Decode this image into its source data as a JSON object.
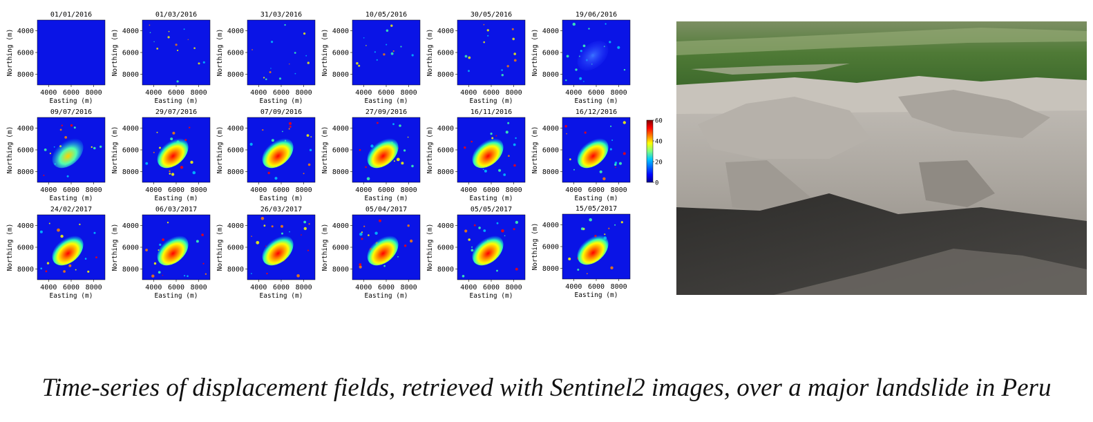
{
  "caption": "Time-series of displacement fields, retrieved with Sentinel2 images, over a major landslide in Peru",
  "photo": {
    "label": "landslide-photo",
    "colors": {
      "sky_field": "#5f8a3e",
      "fields_light": "#9bb07a",
      "rock": "#c9c5bf",
      "rock_dark": "#8e8a84",
      "shadow": "#3a3937"
    }
  },
  "chart_data": {
    "type": "heatmap",
    "xlabel": "Easting (m)",
    "ylabel": "Northing (m)",
    "x_ticks": [
      4000,
      6000,
      8000
    ],
    "y_ticks": [
      4000,
      6000,
      8000
    ],
    "xlim": [
      3000,
      9000
    ],
    "ylim": [
      9000,
      3000
    ],
    "colorbar": {
      "ticks": [
        0,
        20,
        40,
        60
      ],
      "range": [
        0,
        60
      ],
      "colormap": [
        "#00008f",
        "#0000ff",
        "#00c8ff",
        "#7fff7f",
        "#ffff00",
        "#ff7f00",
        "#ff0000",
        "#800000"
      ]
    },
    "panels": [
      {
        "date": "01/01/2016",
        "peak": 0
      },
      {
        "date": "01/03/2016",
        "peak": 0
      },
      {
        "date": "31/03/2016",
        "peak": 0
      },
      {
        "date": "10/05/2016",
        "peak": 0
      },
      {
        "date": "30/05/2016",
        "peak": 0
      },
      {
        "date": "19/06/2016",
        "peak": 8
      },
      {
        "date": "09/07/2016",
        "peak": 35
      },
      {
        "date": "29/07/2016",
        "peak": 50
      },
      {
        "date": "07/09/2016",
        "peak": 55
      },
      {
        "date": "27/09/2016",
        "peak": 55
      },
      {
        "date": "16/11/2016",
        "peak": 55
      },
      {
        "date": "16/12/2016",
        "peak": 55
      },
      {
        "date": "24/02/2017",
        "peak": 58
      },
      {
        "date": "06/03/2017",
        "peak": 58
      },
      {
        "date": "26/03/2017",
        "peak": 58
      },
      {
        "date": "05/04/2017",
        "peak": 58
      },
      {
        "date": "05/05/2017",
        "peak": 58
      },
      {
        "date": "15/05/2017",
        "peak": 58
      }
    ]
  }
}
